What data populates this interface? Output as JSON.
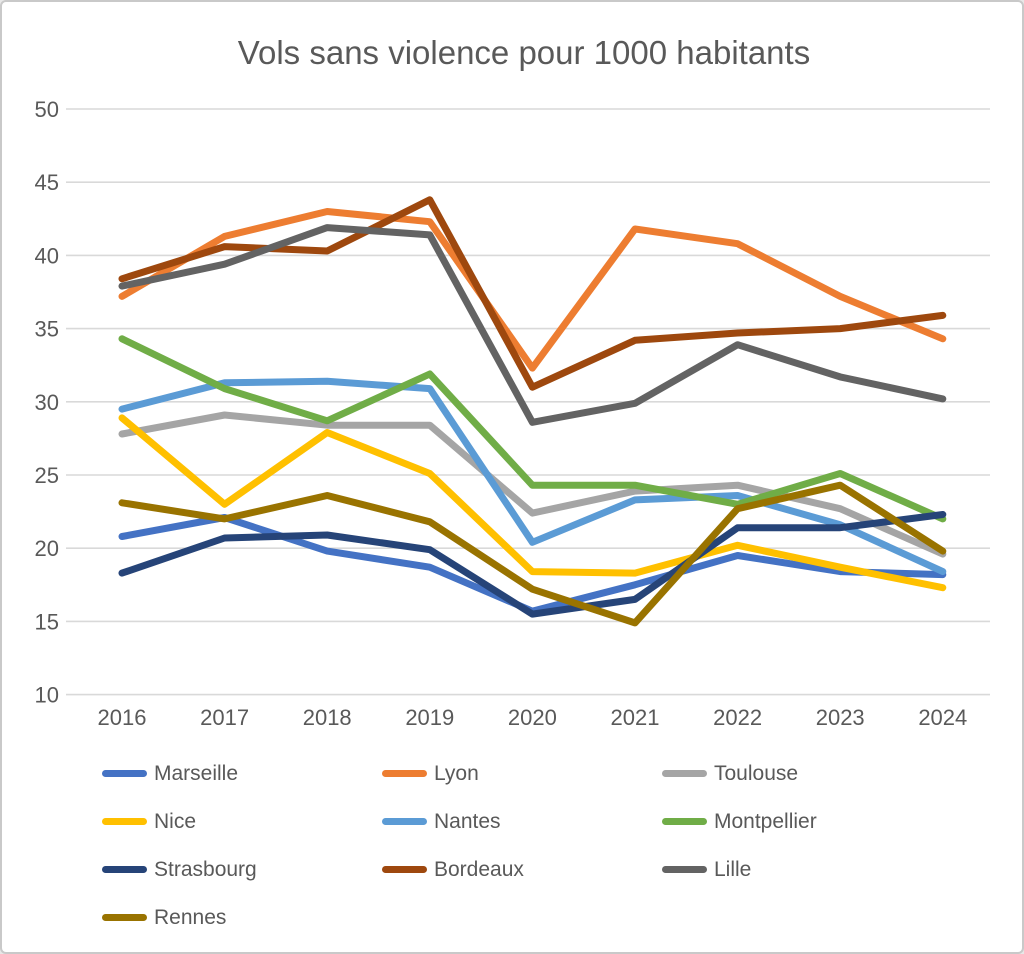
{
  "window": {
    "background_color": "#ffffff",
    "border_color": "#c9c9c9"
  },
  "chart_data": {
    "type": "line",
    "title": "Vols sans violence pour 1000 habitants",
    "xlabel": "",
    "ylabel": "",
    "x": [
      2016,
      2017,
      2018,
      2019,
      2020,
      2021,
      2022,
      2023,
      2024
    ],
    "ylim": [
      10,
      50
    ],
    "yticks": [
      50,
      45,
      40,
      35,
      30,
      25,
      20,
      15,
      10
    ],
    "grid": "horizontal",
    "gridline_color": "#d9d9d9",
    "text_color": "#595959",
    "legend_position": "bottom",
    "legend_columns": 3,
    "series": [
      {
        "name": "Marseille",
        "color": "#4472C4",
        "values": [
          20.8,
          22.1,
          19.8,
          18.7,
          15.7,
          17.5,
          19.5,
          18.4,
          18.2
        ]
      },
      {
        "name": "Lyon",
        "color": "#ED7D31",
        "values": [
          37.2,
          41.3,
          43.0,
          42.3,
          32.3,
          41.8,
          40.8,
          37.2,
          34.3
        ]
      },
      {
        "name": "Toulouse",
        "color": "#A5A5A5",
        "values": [
          27.8,
          29.1,
          28.4,
          28.4,
          22.4,
          23.9,
          24.3,
          22.7,
          19.6
        ]
      },
      {
        "name": "Nice",
        "color": "#FFC000",
        "values": [
          28.9,
          23.0,
          27.9,
          25.1,
          18.4,
          18.3,
          20.2,
          18.7,
          17.3
        ]
      },
      {
        "name": "Nantes",
        "color": "#5B9BD5",
        "values": [
          29.5,
          31.3,
          31.4,
          30.9,
          20.4,
          23.3,
          23.6,
          21.6,
          18.4
        ]
      },
      {
        "name": "Montpellier",
        "color": "#70AD47",
        "values": [
          34.3,
          30.9,
          28.7,
          31.9,
          24.3,
          24.3,
          23.0,
          25.1,
          22.0
        ]
      },
      {
        "name": "Strasbourg",
        "color": "#264478",
        "values": [
          18.3,
          20.7,
          20.9,
          19.9,
          15.5,
          16.5,
          21.4,
          21.4,
          22.3
        ]
      },
      {
        "name": "Bordeaux",
        "color": "#9E480E",
        "values": [
          38.4,
          40.6,
          40.3,
          43.8,
          31.0,
          34.2,
          34.7,
          35.0,
          35.9
        ]
      },
      {
        "name": "Lille",
        "color": "#636363",
        "values": [
          37.9,
          39.4,
          41.9,
          41.4,
          28.6,
          29.9,
          33.9,
          31.7,
          30.2
        ]
      },
      {
        "name": "Rennes",
        "color": "#997300",
        "values": [
          23.1,
          22.0,
          23.6,
          21.8,
          17.2,
          14.9,
          22.7,
          24.3,
          19.8
        ]
      }
    ]
  }
}
